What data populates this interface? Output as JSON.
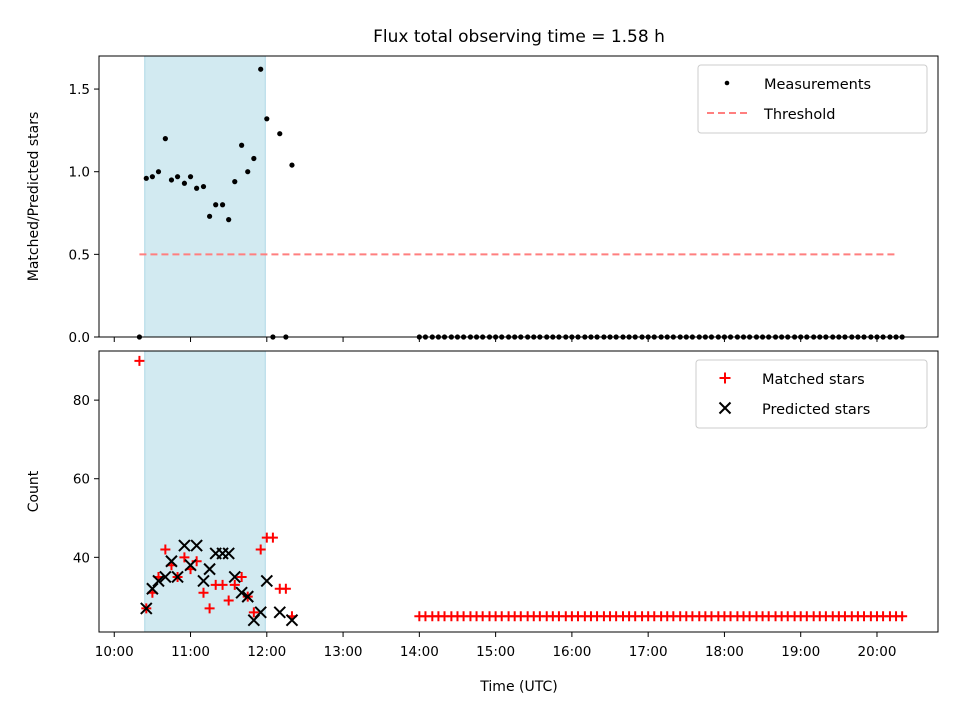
{
  "chart_data": {
    "title": "Flux total observing time = 1.58 h",
    "xlabel": "Time (UTC)",
    "x_ticks": [
      "10:00",
      "11:00",
      "12:00",
      "13:00",
      "14:00",
      "15:00",
      "16:00",
      "17:00",
      "18:00",
      "19:00",
      "20:00"
    ],
    "x_range_hours": [
      9.8,
      20.8
    ],
    "shaded_interval_hours": [
      10.4,
      11.98
    ],
    "shade_color": "#add8e6",
    "panels": [
      {
        "type": "scatter",
        "ylabel": "Matched/Predicted stars",
        "ylim": [
          0,
          1.7
        ],
        "y_ticks": [
          "0.0",
          "0.5",
          "1.0",
          "1.5"
        ],
        "legend_position": "top-right",
        "series": [
          {
            "name": "Measurements",
            "marker": "dot",
            "color": "#000000",
            "points": [
              [
                10.33,
                0.0
              ],
              [
                10.42,
                0.96
              ],
              [
                10.5,
                0.97
              ],
              [
                10.58,
                1.0
              ],
              [
                10.67,
                1.2
              ],
              [
                10.75,
                0.95
              ],
              [
                10.83,
                0.97
              ],
              [
                10.92,
                0.93
              ],
              [
                11.0,
                0.97
              ],
              [
                11.08,
                0.9
              ],
              [
                11.17,
                0.91
              ],
              [
                11.25,
                0.73
              ],
              [
                11.33,
                0.8
              ],
              [
                11.42,
                0.8
              ],
              [
                11.5,
                0.71
              ],
              [
                11.58,
                0.94
              ],
              [
                11.67,
                1.16
              ],
              [
                11.75,
                1.0
              ],
              [
                11.83,
                1.08
              ],
              [
                11.92,
                1.62
              ],
              [
                12.0,
                1.32
              ],
              [
                12.08,
                0.0
              ],
              [
                12.17,
                1.23
              ],
              [
                12.25,
                0.0
              ],
              [
                12.33,
                1.04
              ],
              [
                14.0,
                0.0
              ],
              [
                14.08,
                0.0
              ],
              [
                14.17,
                0.0
              ],
              [
                14.25,
                0.0
              ],
              [
                14.33,
                0.0
              ],
              [
                14.42,
                0.0
              ],
              [
                14.5,
                0.0
              ],
              [
                14.58,
                0.0
              ],
              [
                14.67,
                0.0
              ],
              [
                14.75,
                0.0
              ],
              [
                14.83,
                0.0
              ],
              [
                14.92,
                0.0
              ],
              [
                15.0,
                0.0
              ],
              [
                15.08,
                0.0
              ],
              [
                15.17,
                0.0
              ],
              [
                15.25,
                0.0
              ],
              [
                15.33,
                0.0
              ],
              [
                15.42,
                0.0
              ],
              [
                15.5,
                0.0
              ],
              [
                15.58,
                0.0
              ],
              [
                15.67,
                0.0
              ],
              [
                15.75,
                0.0
              ],
              [
                15.83,
                0.0
              ],
              [
                15.92,
                0.0
              ],
              [
                16.0,
                0.0
              ],
              [
                16.08,
                0.0
              ],
              [
                16.17,
                0.0
              ],
              [
                16.25,
                0.0
              ],
              [
                16.33,
                0.0
              ],
              [
                16.42,
                0.0
              ],
              [
                16.5,
                0.0
              ],
              [
                16.58,
                0.0
              ],
              [
                16.67,
                0.0
              ],
              [
                16.75,
                0.0
              ],
              [
                16.83,
                0.0
              ],
              [
                16.92,
                0.0
              ],
              [
                17.0,
                0.0
              ],
              [
                17.08,
                0.0
              ],
              [
                17.17,
                0.0
              ],
              [
                17.25,
                0.0
              ],
              [
                17.33,
                0.0
              ],
              [
                17.42,
                0.0
              ],
              [
                17.5,
                0.0
              ],
              [
                17.58,
                0.0
              ],
              [
                17.67,
                0.0
              ],
              [
                17.75,
                0.0
              ],
              [
                17.83,
                0.0
              ],
              [
                17.92,
                0.0
              ],
              [
                18.0,
                0.0
              ],
              [
                18.08,
                0.0
              ],
              [
                18.17,
                0.0
              ],
              [
                18.25,
                0.0
              ],
              [
                18.33,
                0.0
              ],
              [
                18.42,
                0.0
              ],
              [
                18.5,
                0.0
              ],
              [
                18.58,
                0.0
              ],
              [
                18.67,
                0.0
              ],
              [
                18.75,
                0.0
              ],
              [
                18.83,
                0.0
              ],
              [
                18.92,
                0.0
              ],
              [
                19.0,
                0.0
              ],
              [
                19.08,
                0.0
              ],
              [
                19.17,
                0.0
              ],
              [
                19.25,
                0.0
              ],
              [
                19.33,
                0.0
              ],
              [
                19.42,
                0.0
              ],
              [
                19.5,
                0.0
              ],
              [
                19.58,
                0.0
              ],
              [
                19.67,
                0.0
              ],
              [
                19.75,
                0.0
              ],
              [
                19.83,
                0.0
              ],
              [
                19.92,
                0.0
              ],
              [
                20.0,
                0.0
              ],
              [
                20.08,
                0.0
              ],
              [
                20.17,
                0.0
              ],
              [
                20.25,
                0.0
              ],
              [
                20.33,
                0.0
              ]
            ]
          },
          {
            "name": "Threshold",
            "marker": "dashed-line",
            "color": "#ff7f7f",
            "points": [
              [
                10.33,
                0.5
              ],
              [
                20.25,
                0.5
              ]
            ]
          }
        ]
      },
      {
        "type": "scatter",
        "ylabel": "Count",
        "ylim": [
          21,
          92.5
        ],
        "y_ticks": [
          "40",
          "60",
          "80"
        ],
        "legend_position": "top-right",
        "series": [
          {
            "name": "Matched stars",
            "marker": "plus",
            "color": "#ff0000",
            "points": [
              [
                10.33,
                90
              ],
              [
                10.42,
                27
              ],
              [
                10.5,
                31
              ],
              [
                10.58,
                35
              ],
              [
                10.67,
                42
              ],
              [
                10.75,
                38
              ],
              [
                10.83,
                35
              ],
              [
                10.92,
                40
              ],
              [
                11.0,
                37
              ],
              [
                11.08,
                39
              ],
              [
                11.17,
                31
              ],
              [
                11.25,
                27
              ],
              [
                11.33,
                33
              ],
              [
                11.42,
                33
              ],
              [
                11.5,
                29
              ],
              [
                11.58,
                33
              ],
              [
                11.67,
                35
              ],
              [
                11.75,
                30
              ],
              [
                11.83,
                26
              ],
              [
                11.92,
                42
              ],
              [
                12.0,
                45
              ],
              [
                12.08,
                45
              ],
              [
                12.17,
                32
              ],
              [
                12.25,
                32
              ],
              [
                12.33,
                25
              ],
              [
                14.0,
                25
              ],
              [
                14.08,
                25
              ],
              [
                14.17,
                25
              ],
              [
                14.25,
                25
              ],
              [
                14.33,
                25
              ],
              [
                14.42,
                25
              ],
              [
                14.5,
                25
              ],
              [
                14.58,
                25
              ],
              [
                14.67,
                25
              ],
              [
                14.75,
                25
              ],
              [
                14.83,
                25
              ],
              [
                14.92,
                25
              ],
              [
                15.0,
                25
              ],
              [
                15.08,
                25
              ],
              [
                15.17,
                25
              ],
              [
                15.25,
                25
              ],
              [
                15.33,
                25
              ],
              [
                15.42,
                25
              ],
              [
                15.5,
                25
              ],
              [
                15.58,
                25
              ],
              [
                15.67,
                25
              ],
              [
                15.75,
                25
              ],
              [
                15.83,
                25
              ],
              [
                15.92,
                25
              ],
              [
                16.0,
                25
              ],
              [
                16.08,
                25
              ],
              [
                16.17,
                25
              ],
              [
                16.25,
                25
              ],
              [
                16.33,
                25
              ],
              [
                16.42,
                25
              ],
              [
                16.5,
                25
              ],
              [
                16.58,
                25
              ],
              [
                16.67,
                25
              ],
              [
                16.75,
                25
              ],
              [
                16.83,
                25
              ],
              [
                16.92,
                25
              ],
              [
                17.0,
                25
              ],
              [
                17.08,
                25
              ],
              [
                17.17,
                25
              ],
              [
                17.25,
                25
              ],
              [
                17.33,
                25
              ],
              [
                17.42,
                25
              ],
              [
                17.5,
                25
              ],
              [
                17.58,
                25
              ],
              [
                17.67,
                25
              ],
              [
                17.75,
                25
              ],
              [
                17.83,
                25
              ],
              [
                17.92,
                25
              ],
              [
                18.0,
                25
              ],
              [
                18.08,
                25
              ],
              [
                18.17,
                25
              ],
              [
                18.25,
                25
              ],
              [
                18.33,
                25
              ],
              [
                18.42,
                25
              ],
              [
                18.5,
                25
              ],
              [
                18.58,
                25
              ],
              [
                18.67,
                25
              ],
              [
                18.75,
                25
              ],
              [
                18.83,
                25
              ],
              [
                18.92,
                25
              ],
              [
                19.0,
                25
              ],
              [
                19.08,
                25
              ],
              [
                19.17,
                25
              ],
              [
                19.25,
                25
              ],
              [
                19.33,
                25
              ],
              [
                19.42,
                25
              ],
              [
                19.5,
                25
              ],
              [
                19.58,
                25
              ],
              [
                19.67,
                25
              ],
              [
                19.75,
                25
              ],
              [
                19.83,
                25
              ],
              [
                19.92,
                25
              ],
              [
                20.0,
                25
              ],
              [
                20.08,
                25
              ],
              [
                20.17,
                25
              ],
              [
                20.25,
                25
              ],
              [
                20.33,
                25
              ]
            ]
          },
          {
            "name": "Predicted stars",
            "marker": "x",
            "color": "#000000",
            "points": [
              [
                10.42,
                27
              ],
              [
                10.5,
                32
              ],
              [
                10.58,
                34
              ],
              [
                10.67,
                35
              ],
              [
                10.75,
                39
              ],
              [
                10.83,
                35
              ],
              [
                10.92,
                43
              ],
              [
                11.0,
                38
              ],
              [
                11.08,
                43
              ],
              [
                11.17,
                34
              ],
              [
                11.25,
                37
              ],
              [
                11.33,
                41
              ],
              [
                11.42,
                41
              ],
              [
                11.5,
                41
              ],
              [
                11.58,
                35
              ],
              [
                11.67,
                31
              ],
              [
                11.75,
                30
              ],
              [
                11.83,
                24
              ],
              [
                11.92,
                26
              ],
              [
                12.0,
                34
              ],
              [
                12.17,
                26
              ],
              [
                12.33,
                24
              ]
            ]
          }
        ]
      }
    ]
  }
}
